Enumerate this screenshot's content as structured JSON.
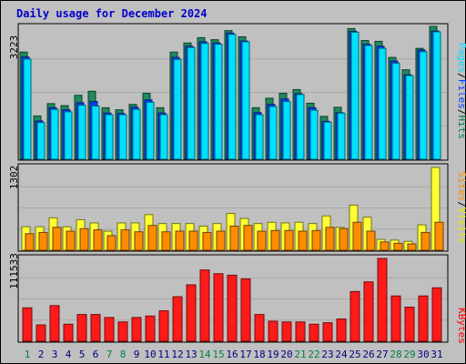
{
  "chart_data": [
    {
      "type": "bar",
      "title": "Daily usage for December 2024",
      "ymax_label": "3223",
      "ylim": [
        0,
        3223
      ],
      "categories": [
        "1",
        "2",
        "3",
        "4",
        "5",
        "6",
        "7",
        "8",
        "9",
        "10",
        "11",
        "12",
        "13",
        "14",
        "15",
        "16",
        "17",
        "18",
        "19",
        "20",
        "21",
        "22",
        "23",
        "24",
        "25",
        "26",
        "27",
        "28",
        "29",
        "30",
        "31"
      ],
      "weekend_days": [
        "1",
        "7",
        "8",
        "14",
        "15",
        "21",
        "22",
        "28",
        "29"
      ],
      "legend": [
        {
          "text": "Hits",
          "color": "#008040"
        },
        {
          "text": "Files",
          "color": "#0040ff"
        },
        {
          "text": "Pages",
          "color": "#00e0ff"
        }
      ],
      "series": [
        {
          "name": "Hits",
          "color": "#1f8a5a",
          "values": [
            2600,
            1050,
            1350,
            1300,
            1550,
            1650,
            1250,
            1200,
            1330,
            1600,
            1250,
            2600,
            2820,
            2950,
            2900,
            3120,
            2970,
            1250,
            1480,
            1600,
            1690,
            1360,
            1040,
            1260,
            3170,
            2880,
            2860,
            2470,
            2170,
            2690,
            3223
          ]
        },
        {
          "name": "Files",
          "color": "#0040ff",
          "values": [
            2480,
            930,
            1250,
            1200,
            1370,
            1400,
            1120,
            1110,
            1260,
            1440,
            1120,
            2470,
            2740,
            2850,
            2820,
            3060,
            2870,
            1130,
            1330,
            1460,
            1590,
            1250,
            920,
            1130,
            3100,
            2790,
            2740,
            2380,
            2050,
            2650,
            3110
          ]
        },
        {
          "name": "Pages",
          "color": "#00e0ff",
          "values": [
            2430,
            890,
            1210,
            1150,
            1310,
            1290,
            1080,
            1080,
            1210,
            1380,
            1080,
            2420,
            2710,
            2810,
            2790,
            3030,
            2850,
            1080,
            1280,
            1400,
            1570,
            1190,
            900,
            1120,
            3080,
            2760,
            2690,
            2330,
            2030,
            2610,
            3090
          ]
        }
      ]
    },
    {
      "type": "bar",
      "ymax_label": "1302",
      "ylim": [
        0,
        1302
      ],
      "legend": [
        {
          "text": "Visits",
          "color": "#e8e800"
        },
        {
          "text": "Sites",
          "color": "#ff8c00"
        }
      ],
      "series": [
        {
          "name": "Visits",
          "color": "#ffff33",
          "values": [
            370,
            370,
            510,
            370,
            480,
            430,
            300,
            430,
            430,
            560,
            420,
            420,
            420,
            380,
            420,
            580,
            500,
            420,
            440,
            430,
            440,
            420,
            540,
            360,
            710,
            520,
            170,
            160,
            140,
            400,
            1302
          ]
        },
        {
          "name": "Sites",
          "color": "#ff8c00",
          "values": [
            260,
            280,
            360,
            300,
            340,
            320,
            230,
            320,
            290,
            390,
            290,
            300,
            300,
            280,
            300,
            380,
            390,
            300,
            310,
            310,
            300,
            310,
            360,
            340,
            440,
            300,
            130,
            110,
            100,
            280,
            440
          ]
        }
      ]
    },
    {
      "type": "bar",
      "ymax_label": "111533",
      "ylim": [
        0,
        111533
      ],
      "legend": [
        {
          "text": "KBytes",
          "color": "#ff0000"
        }
      ],
      "series": [
        {
          "name": "KBytes",
          "color": "#ff1a1a",
          "values": [
            45000,
            22000,
            48000,
            23000,
            36000,
            36000,
            32000,
            26000,
            32000,
            34000,
            41000,
            60000,
            76000,
            96000,
            91000,
            89000,
            84000,
            36000,
            27000,
            26000,
            26000,
            23000,
            25000,
            30000,
            67000,
            80000,
            111533,
            61000,
            46000,
            61000,
            72000
          ]
        }
      ]
    }
  ]
}
